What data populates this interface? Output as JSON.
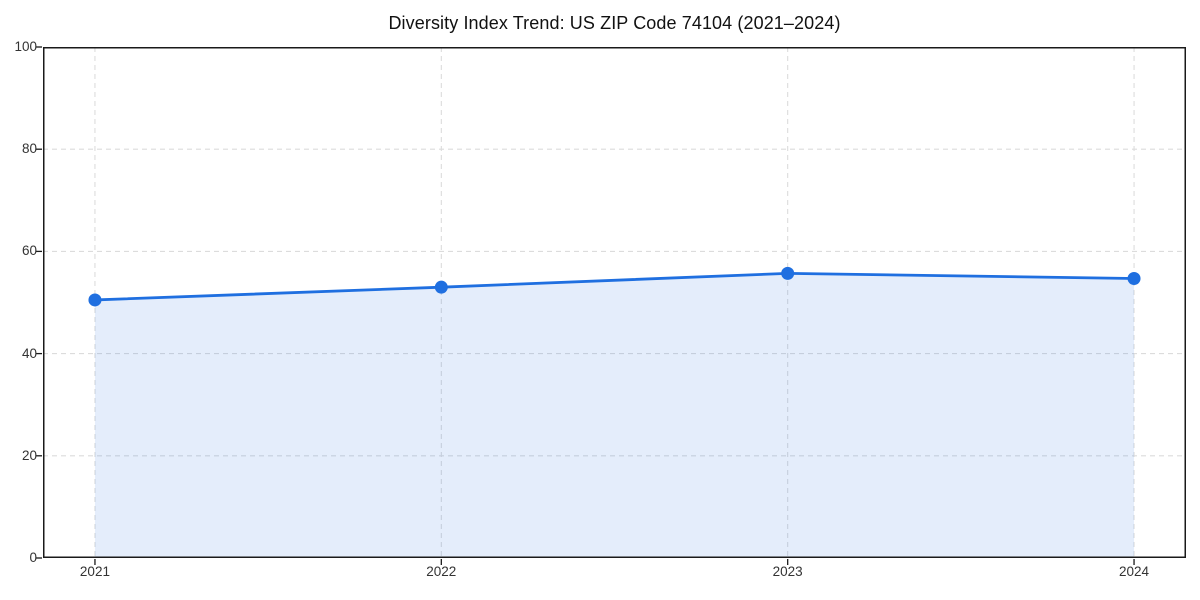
{
  "chart_data": {
    "type": "line",
    "title": "Diversity Index Trend: US ZIP Code 74104 (2021–2024)",
    "x": [
      2021,
      2022,
      2023,
      2024
    ],
    "series": [
      {
        "name": "Diversity Index",
        "values": [
          50.5,
          53.0,
          55.7,
          54.7
        ]
      }
    ],
    "xlabel": "",
    "ylabel": "",
    "xlim": [
      2020.85,
      2024.15
    ],
    "ylim": [
      0,
      100
    ],
    "xticks": [
      2021,
      2022,
      2023,
      2024
    ],
    "yticks": [
      0,
      20,
      40,
      60,
      80,
      100
    ],
    "grid": true,
    "grid_style": "dashed",
    "legend_position": "none",
    "marker": "circle",
    "area_fill": true
  },
  "style": {
    "line_color": "#1f6fe0",
    "marker_color": "#1f6fe0",
    "fill_color": "rgba(31, 111, 224, 0.12)",
    "grid_color": "#dcdcdc",
    "spine_color": "#1a1a1a",
    "tick_color": "#1a1a1a",
    "tick_label_color": "#333333",
    "title_color": "#111111",
    "background_color": "#ffffff"
  }
}
